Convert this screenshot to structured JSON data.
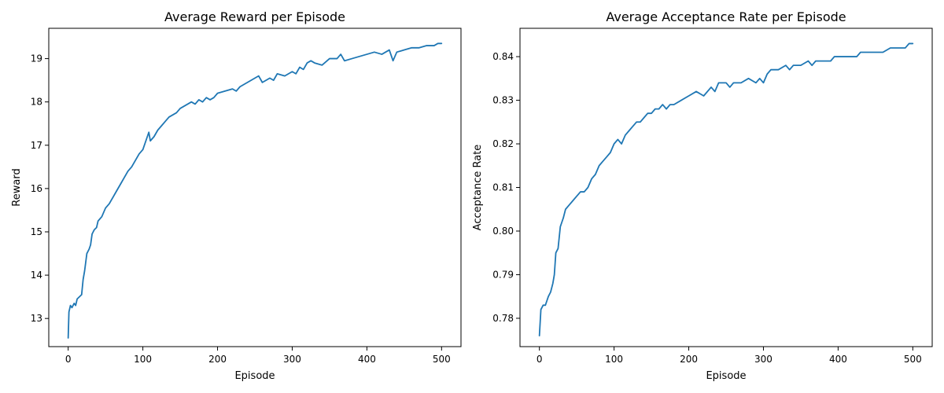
{
  "chart_data": [
    {
      "type": "line",
      "title": "Average Reward per Episode",
      "xlabel": "Episode",
      "ylabel": "Reward",
      "xlim": [
        -26,
        526
      ],
      "ylim": [
        12.35,
        19.7
      ],
      "xticks": [
        0,
        100,
        200,
        300,
        400,
        500
      ],
      "yticks": [
        13,
        14,
        15,
        16,
        17,
        18,
        19
      ],
      "grid": false,
      "color": "#1f77b4",
      "x": [
        0,
        1,
        3,
        5,
        8,
        10,
        12,
        15,
        18,
        20,
        22,
        25,
        28,
        30,
        32,
        35,
        38,
        40,
        45,
        50,
        55,
        60,
        65,
        70,
        75,
        80,
        85,
        90,
        95,
        100,
        105,
        108,
        110,
        115,
        120,
        125,
        130,
        135,
        140,
        145,
        150,
        155,
        160,
        165,
        170,
        175,
        180,
        185,
        190,
        195,
        200,
        210,
        220,
        225,
        230,
        240,
        250,
        255,
        260,
        270,
        275,
        280,
        290,
        300,
        305,
        310,
        315,
        320,
        325,
        330,
        340,
        350,
        360,
        365,
        370,
        380,
        390,
        400,
        410,
        420,
        430,
        435,
        440,
        450,
        460,
        470,
        480,
        490,
        495,
        500
      ],
      "y": [
        12.55,
        13.15,
        13.3,
        13.25,
        13.35,
        13.3,
        13.45,
        13.5,
        13.55,
        13.9,
        14.1,
        14.5,
        14.6,
        14.7,
        14.95,
        15.05,
        15.1,
        15.25,
        15.35,
        15.55,
        15.65,
        15.8,
        15.95,
        16.1,
        16.25,
        16.4,
        16.5,
        16.65,
        16.8,
        16.9,
        17.15,
        17.3,
        17.1,
        17.2,
        17.35,
        17.45,
        17.55,
        17.65,
        17.7,
        17.75,
        17.85,
        17.9,
        17.95,
        18.0,
        17.95,
        18.05,
        18.0,
        18.1,
        18.05,
        18.1,
        18.2,
        18.25,
        18.3,
        18.25,
        18.35,
        18.45,
        18.55,
        18.6,
        18.45,
        18.55,
        18.5,
        18.65,
        18.6,
        18.7,
        18.65,
        18.8,
        18.75,
        18.9,
        18.95,
        18.9,
        18.85,
        19.0,
        19.0,
        19.1,
        18.95,
        19.0,
        19.05,
        19.1,
        19.15,
        19.1,
        19.2,
        18.95,
        19.15,
        19.2,
        19.25,
        19.25,
        19.3,
        19.3,
        19.35,
        19.35
      ]
    },
    {
      "type": "line",
      "title": "Average Acceptance Rate per Episode",
      "xlabel": "Episode",
      "ylabel": "Acceptance Rate",
      "xlim": [
        -26,
        526
      ],
      "ylim": [
        0.7735,
        0.8465
      ],
      "xticks": [
        0,
        100,
        200,
        300,
        400,
        500
      ],
      "yticks": [
        0.78,
        0.79,
        0.8,
        0.81,
        0.82,
        0.83,
        0.84
      ],
      "grid": false,
      "color": "#1f77b4",
      "x": [
        0,
        2,
        5,
        8,
        10,
        12,
        15,
        18,
        20,
        22,
        25,
        28,
        30,
        32,
        35,
        40,
        45,
        50,
        55,
        60,
        65,
        70,
        75,
        80,
        85,
        90,
        95,
        100,
        105,
        110,
        115,
        120,
        125,
        130,
        135,
        140,
        145,
        150,
        155,
        160,
        165,
        170,
        175,
        180,
        190,
        200,
        210,
        220,
        230,
        235,
        240,
        250,
        255,
        260,
        270,
        280,
        290,
        295,
        300,
        305,
        310,
        320,
        330,
        335,
        340,
        345,
        350,
        360,
        365,
        370,
        380,
        390,
        395,
        400,
        410,
        420,
        425,
        430,
        440,
        450,
        460,
        470,
        480,
        490,
        495,
        500
      ],
      "y": [
        0.776,
        0.782,
        0.783,
        0.783,
        0.784,
        0.785,
        0.786,
        0.788,
        0.79,
        0.795,
        0.796,
        0.801,
        0.802,
        0.803,
        0.805,
        0.806,
        0.807,
        0.808,
        0.809,
        0.809,
        0.81,
        0.812,
        0.813,
        0.815,
        0.816,
        0.817,
        0.818,
        0.82,
        0.821,
        0.82,
        0.822,
        0.823,
        0.824,
        0.825,
        0.825,
        0.826,
        0.827,
        0.827,
        0.828,
        0.828,
        0.829,
        0.828,
        0.829,
        0.829,
        0.83,
        0.831,
        0.832,
        0.831,
        0.833,
        0.832,
        0.834,
        0.834,
        0.833,
        0.834,
        0.834,
        0.835,
        0.834,
        0.835,
        0.834,
        0.836,
        0.837,
        0.837,
        0.838,
        0.837,
        0.838,
        0.838,
        0.838,
        0.839,
        0.838,
        0.839,
        0.839,
        0.839,
        0.84,
        0.84,
        0.84,
        0.84,
        0.84,
        0.841,
        0.841,
        0.841,
        0.841,
        0.842,
        0.842,
        0.842,
        0.843,
        0.843
      ]
    }
  ]
}
